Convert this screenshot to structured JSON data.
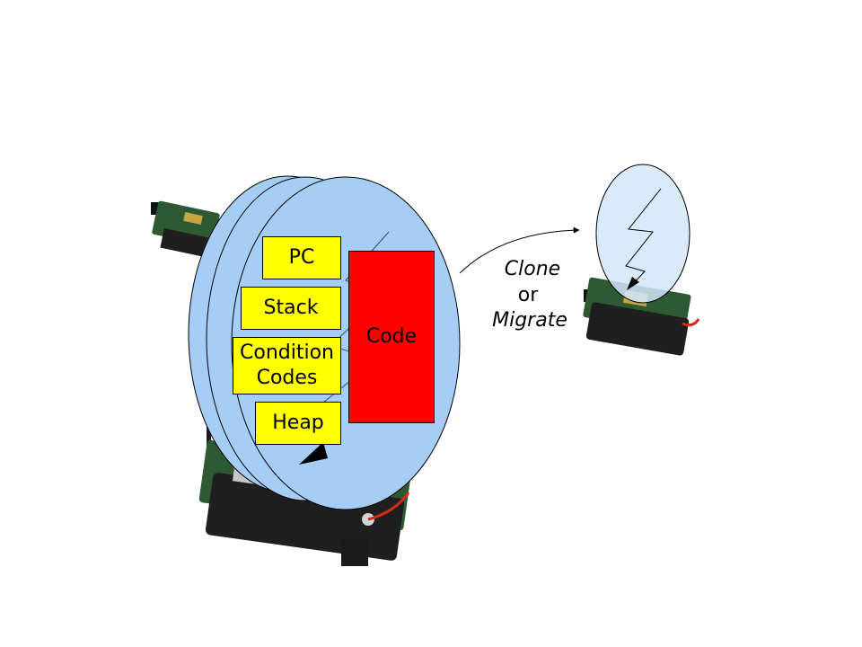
{
  "agent": {
    "boxes": {
      "pc": "PC",
      "stack": "Stack",
      "condition_codes_line1": "Condition",
      "condition_codes_line2": "Codes",
      "heap": "Heap",
      "code": "Code"
    }
  },
  "transfer": {
    "line1": "Clone",
    "line2": "or",
    "line3": "Migrate"
  },
  "colors": {
    "agent_fill": "#a6cdf5",
    "remote_fill": "#d2e6fb",
    "state_box": "#ffff00",
    "code_box": "#ff0000",
    "pcb": "#2e5a33",
    "battery": "#1f1f1f"
  },
  "icons": {
    "sensor_mote": "sensor-mote-icon",
    "lightning": "lightning-bolt-icon"
  }
}
